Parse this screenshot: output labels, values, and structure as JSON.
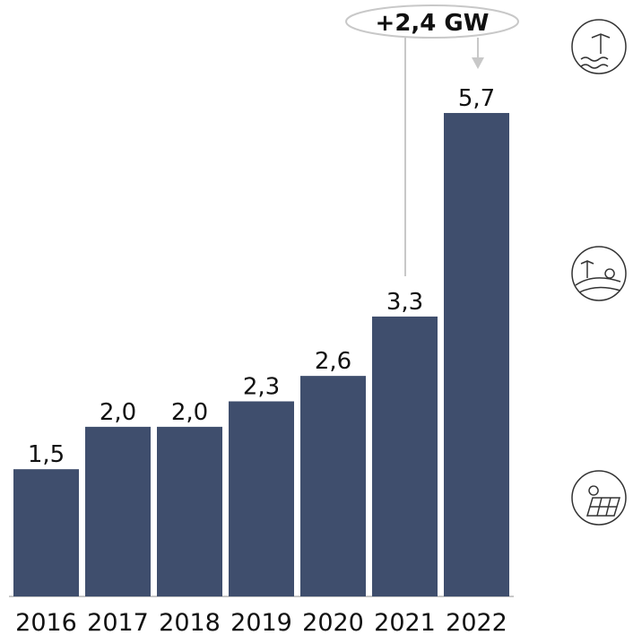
{
  "chart_data": {
    "type": "bar",
    "categories": [
      "2016",
      "2017",
      "2018",
      "2019",
      "2020",
      "2021",
      "2022"
    ],
    "values": [
      1.5,
      2.0,
      2.0,
      2.3,
      2.6,
      3.3,
      5.7
    ],
    "value_labels": [
      "1,5",
      "2,0",
      "2,0",
      "2,3",
      "2,6",
      "3,3",
      "5,7"
    ],
    "color": "#3f4e6d",
    "ylim": [
      0,
      6
    ],
    "annotation": "+2,4 GW"
  }
}
